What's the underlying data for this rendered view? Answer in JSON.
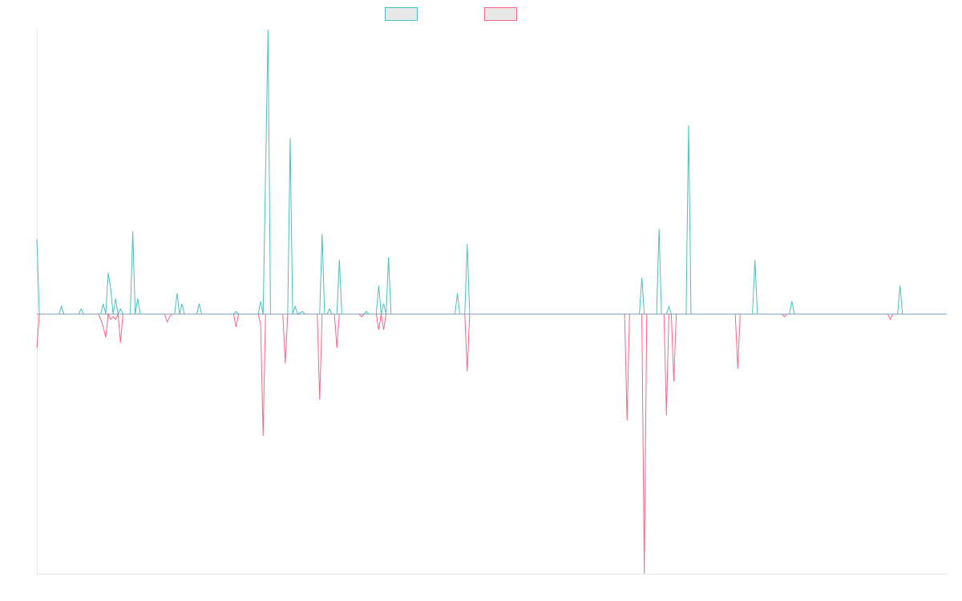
{
  "chart_data": {
    "type": "line",
    "title": "",
    "xlabel": "",
    "ylabel": "",
    "grid": false,
    "legend_placement": "top-center",
    "ylim": [
      -100,
      110
    ],
    "colors": {
      "series_a": "#4bc0c0",
      "series_b": "#ff6384",
      "baseline": "#7f9bb0",
      "legend_fill": "#e8e8e8",
      "axis": "#e6e6e6"
    },
    "series": [
      {
        "name": "",
        "color": "#4bc0c0",
        "points": [
          [
            0,
            29
          ],
          [
            1,
            0
          ],
          [
            9,
            0
          ],
          [
            10,
            3
          ],
          [
            11,
            0
          ],
          [
            17,
            0
          ],
          [
            18,
            2
          ],
          [
            19,
            0
          ],
          [
            26,
            0
          ],
          [
            27,
            4
          ],
          [
            28,
            0
          ],
          [
            29,
            16
          ],
          [
            30,
            10
          ],
          [
            31,
            0
          ],
          [
            32,
            6
          ],
          [
            33,
            0
          ],
          [
            34,
            2
          ],
          [
            35,
            0
          ],
          [
            38,
            0
          ],
          [
            39,
            32
          ],
          [
            40,
            0
          ],
          [
            41,
            6
          ],
          [
            42,
            0
          ],
          [
            56,
            0
          ],
          [
            57,
            8
          ],
          [
            58,
            0
          ],
          [
            59,
            4
          ],
          [
            60,
            0
          ],
          [
            65,
            0
          ],
          [
            66,
            4
          ],
          [
            67,
            0
          ],
          [
            80,
            0
          ],
          [
            81,
            1
          ],
          [
            82,
            0
          ],
          [
            90,
            0
          ],
          [
            91,
            5
          ],
          [
            92,
            0
          ],
          [
            94,
            110
          ],
          [
            95,
            0
          ],
          [
            102,
            0
          ],
          [
            103,
            68
          ],
          [
            104,
            0
          ],
          [
            105,
            3
          ],
          [
            106,
            0
          ],
          [
            108,
            1
          ],
          [
            109,
            0
          ],
          [
            115,
            0
          ],
          [
            116,
            31
          ],
          [
            117,
            0
          ],
          [
            118,
            0
          ],
          [
            119,
            2
          ],
          [
            120,
            0
          ],
          [
            122,
            0
          ],
          [
            123,
            21
          ],
          [
            124,
            0
          ],
          [
            133,
            0
          ],
          [
            134,
            1
          ],
          [
            135,
            0
          ],
          [
            138,
            0
          ],
          [
            139,
            11
          ],
          [
            140,
            0
          ],
          [
            141,
            4
          ],
          [
            142,
            0
          ],
          [
            143,
            22
          ],
          [
            144,
            0
          ],
          [
            170,
            0
          ],
          [
            171,
            8
          ],
          [
            172,
            0
          ],
          [
            174,
            0
          ],
          [
            175,
            27
          ],
          [
            176,
            0
          ],
          [
            245,
            0
          ],
          [
            246,
            14
          ],
          [
            247,
            0
          ],
          [
            252,
            0
          ],
          [
            253,
            33
          ],
          [
            254,
            0
          ],
          [
            256,
            0
          ],
          [
            257,
            3
          ],
          [
            258,
            0
          ],
          [
            264,
            0
          ],
          [
            265,
            73
          ],
          [
            266,
            0
          ],
          [
            291,
            0
          ],
          [
            292,
            21
          ],
          [
            293,
            0
          ],
          [
            306,
            0
          ],
          [
            307,
            5
          ],
          [
            308,
            0
          ],
          [
            350,
            0
          ],
          [
            351,
            11
          ],
          [
            352,
            0
          ],
          [
            370,
            0
          ]
        ]
      },
      {
        "name": "",
        "color": "#ff6384",
        "points": [
          [
            0,
            -13
          ],
          [
            1,
            0
          ],
          [
            25,
            0
          ],
          [
            26,
            -2
          ],
          [
            27,
            -5
          ],
          [
            28,
            -9
          ],
          [
            29,
            0
          ],
          [
            30,
            -2
          ],
          [
            31,
            -1
          ],
          [
            32,
            -2
          ],
          [
            33,
            0
          ],
          [
            34,
            -11
          ],
          [
            35,
            0
          ],
          [
            52,
            0
          ],
          [
            53,
            -3
          ],
          [
            54,
            -1
          ],
          [
            55,
            0
          ],
          [
            80,
            0
          ],
          [
            81,
            -5
          ],
          [
            82,
            0
          ],
          [
            90,
            0
          ],
          [
            91,
            -4
          ],
          [
            92,
            -47
          ],
          [
            93,
            0
          ],
          [
            100,
            0
          ],
          [
            101,
            -19
          ],
          [
            102,
            0
          ],
          [
            114,
            0
          ],
          [
            115,
            -33
          ],
          [
            116,
            0
          ],
          [
            121,
            0
          ],
          [
            122,
            -13
          ],
          [
            123,
            0
          ],
          [
            131,
            0
          ],
          [
            132,
            -1
          ],
          [
            133,
            0
          ],
          [
            138,
            0
          ],
          [
            139,
            -6
          ],
          [
            140,
            0
          ],
          [
            141,
            -6
          ],
          [
            142,
            0
          ],
          [
            174,
            0
          ],
          [
            175,
            -22
          ],
          [
            176,
            0
          ],
          [
            239,
            0
          ],
          [
            240,
            -41
          ],
          [
            241,
            0
          ],
          [
            246,
            0
          ],
          [
            247,
            -100
          ],
          [
            248,
            0
          ],
          [
            255,
            0
          ],
          [
            256,
            -39
          ],
          [
            257,
            0
          ],
          [
            258,
            0
          ],
          [
            259,
            -26
          ],
          [
            260,
            0
          ],
          [
            284,
            0
          ],
          [
            285,
            -21
          ],
          [
            286,
            0
          ],
          [
            303,
            0
          ],
          [
            304,
            -1
          ],
          [
            305,
            0
          ],
          [
            346,
            0
          ],
          [
            347,
            -2
          ],
          [
            348,
            0
          ],
          [
            370,
            0
          ]
        ]
      }
    ]
  }
}
